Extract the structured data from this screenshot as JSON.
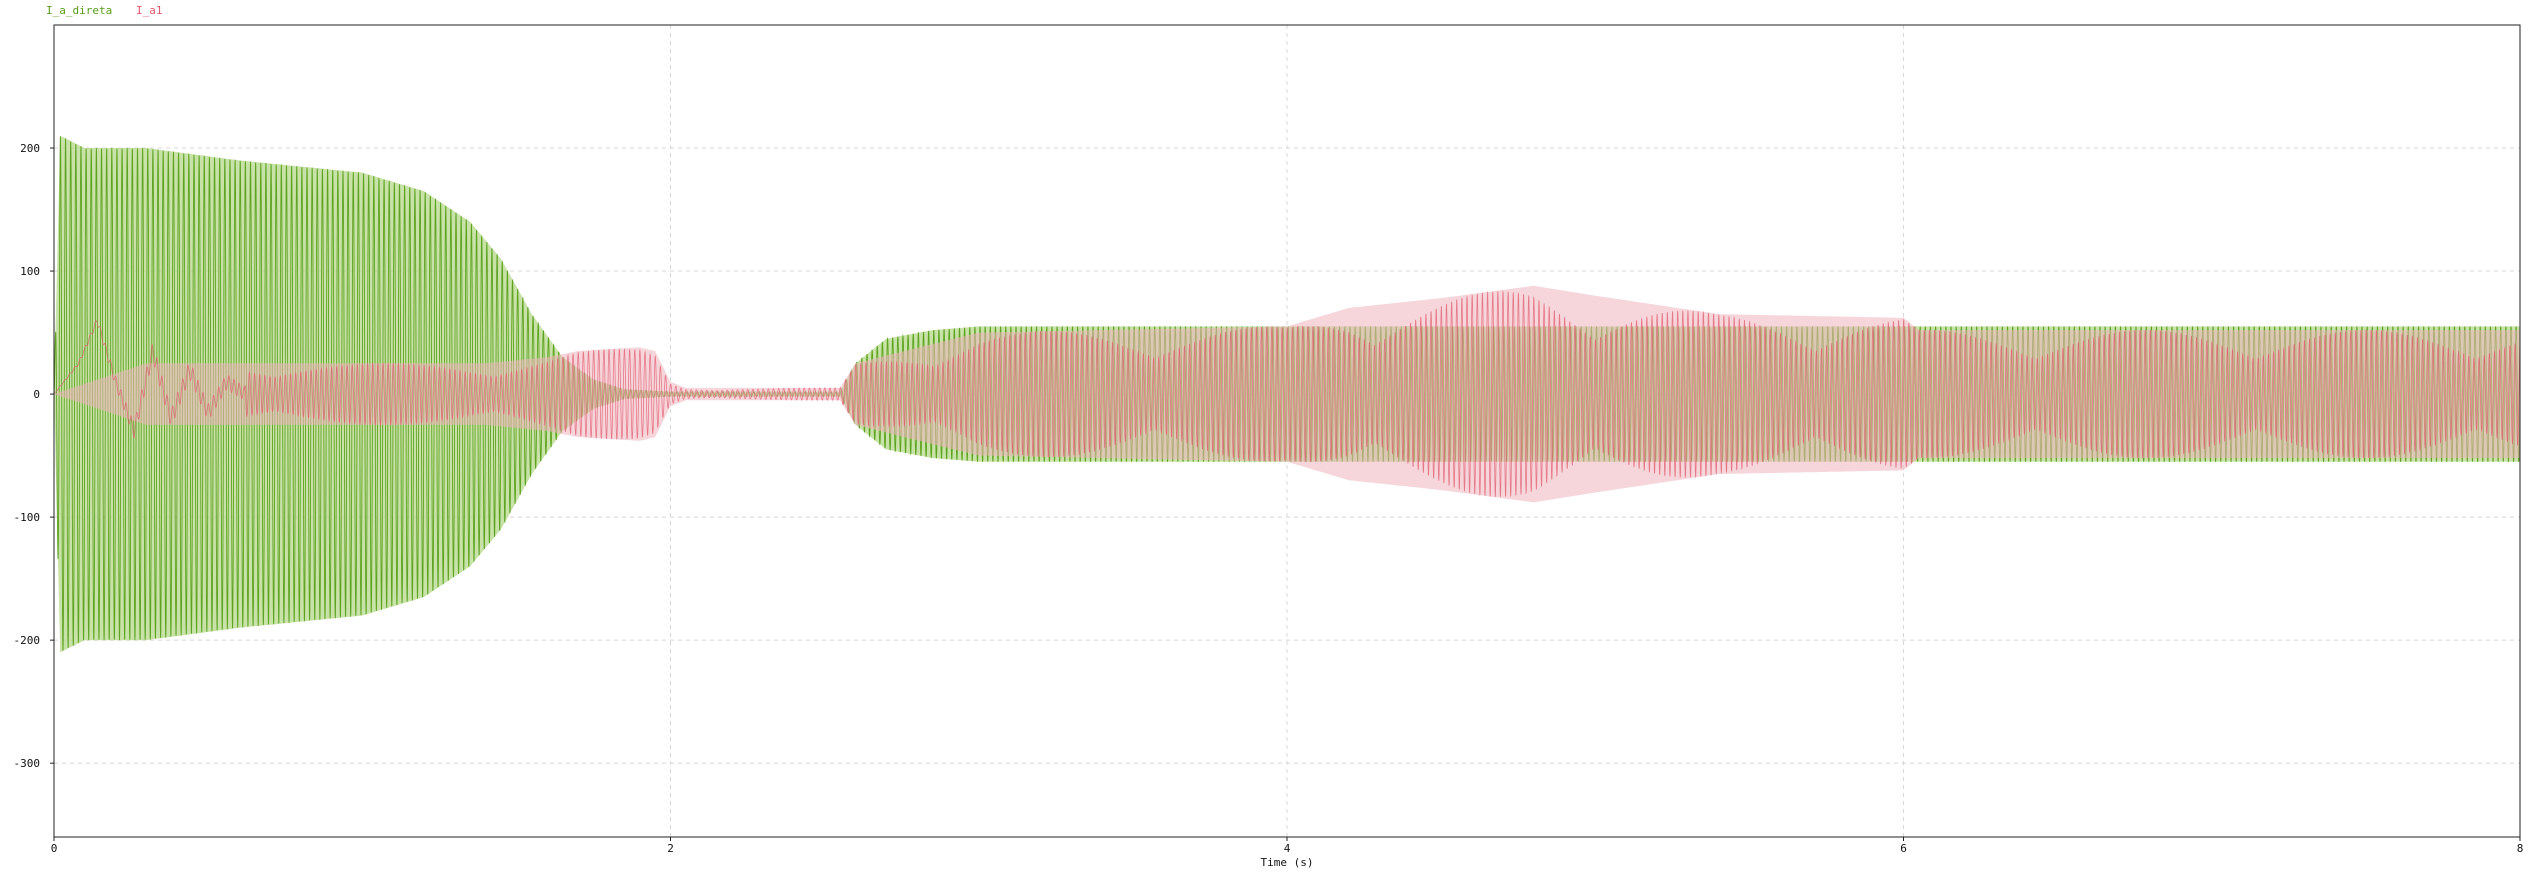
{
  "legend": [
    {
      "label": "I_a_direta",
      "color": "#5a9e1a"
    },
    {
      "label": "I_a1",
      "color": "#e05a6e"
    }
  ],
  "chart_data": {
    "type": "line",
    "title": "",
    "xlabel": "Time (s)",
    "ylabel": "",
    "xlim": [
      0,
      8
    ],
    "ylim": [
      -360,
      300
    ],
    "xticks": [
      0,
      2,
      4,
      6,
      8
    ],
    "yticks": [
      -300,
      -200,
      -100,
      0,
      100,
      200
    ],
    "grid": true,
    "legend_position": "top-left",
    "series": [
      {
        "name": "I_a_direta",
        "color": "#5a9e1a",
        "fill_color": "#b5da8a",
        "frequency_hz": 60,
        "envelope": {
          "t": [
            0,
            0.02,
            0.1,
            0.3,
            0.6,
            1.0,
            1.2,
            1.35,
            1.45,
            1.55,
            1.65,
            1.75,
            1.85,
            2.0,
            2.55,
            2.6,
            2.7,
            2.85,
            3.0,
            4.0,
            6.0,
            8.0
          ],
          "amplitude": [
            0,
            210,
            200,
            200,
            190,
            180,
            165,
            140,
            110,
            65,
            30,
            12,
            4,
            2,
            2,
            25,
            45,
            52,
            55,
            55,
            55,
            55
          ]
        }
      },
      {
        "name": "I_a1",
        "color": "#e05a6e",
        "fill_color": "#efb5bd",
        "frequency_hz": 60,
        "envelope": {
          "t": [
            0,
            0.3,
            0.6,
            1.0,
            1.4,
            1.6,
            1.7,
            1.9,
            1.95,
            2.0,
            2.05,
            2.55,
            2.6,
            3.0,
            4.0,
            4.2,
            4.5,
            4.8,
            5.0,
            5.4,
            6.0,
            6.05,
            8.0
          ],
          "amplitude": [
            0,
            25,
            25,
            25,
            25,
            30,
            35,
            38,
            35,
            10,
            5,
            5,
            25,
            50,
            55,
            70,
            78,
            88,
            80,
            65,
            62,
            52,
            52
          ]
        },
        "low_freq_component": {
          "t": [
            0.0,
            0.08,
            0.14,
            0.2,
            0.26,
            0.32,
            0.38,
            0.44,
            0.5,
            0.56,
            0.62
          ],
          "value": [
            0,
            25,
            60,
            10,
            -30,
            35,
            -20,
            20,
            -15,
            10,
            0
          ]
        }
      }
    ]
  }
}
